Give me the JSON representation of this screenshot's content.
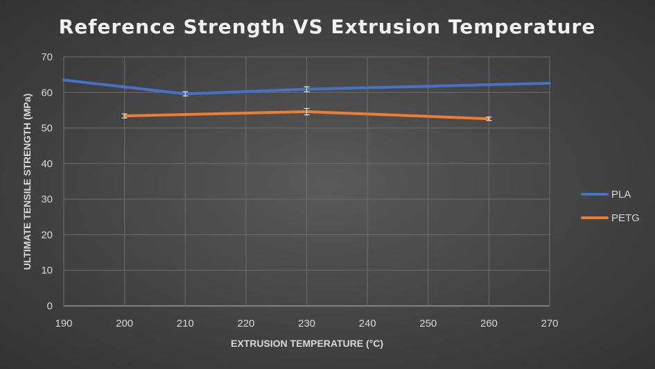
{
  "chart_data": {
    "type": "line",
    "title": "Reference Strength VS Extrusion Temperature",
    "xlabel": "EXTRUSION TEMPERATURE (°C)",
    "ylabel": "ULTIMATE TENSILE STRENGTH (MPa)",
    "xlim": [
      190,
      270
    ],
    "ylim": [
      0,
      70
    ],
    "xticks": [
      190,
      200,
      210,
      220,
      230,
      240,
      250,
      260,
      270
    ],
    "yticks": [
      0,
      10,
      20,
      30,
      40,
      50,
      60,
      70
    ],
    "grid": true,
    "legend_position": "right",
    "series": [
      {
        "name": "PLA",
        "color": "#4472c4",
        "points": [
          {
            "x": 190,
            "y": 63.5
          },
          {
            "x": 210,
            "y": 59.6,
            "err": 0.6
          },
          {
            "x": 230,
            "y": 60.9,
            "err": 0.7
          },
          {
            "x": 270,
            "y": 62.6
          }
        ]
      },
      {
        "name": "PETG",
        "color": "#ed7d31",
        "points": [
          {
            "x": 200,
            "y": 53.4,
            "err": 0.6
          },
          {
            "x": 230,
            "y": 54.6,
            "err": 0.9
          },
          {
            "x": 260,
            "y": 52.6,
            "err": 0.5
          }
        ]
      }
    ]
  }
}
